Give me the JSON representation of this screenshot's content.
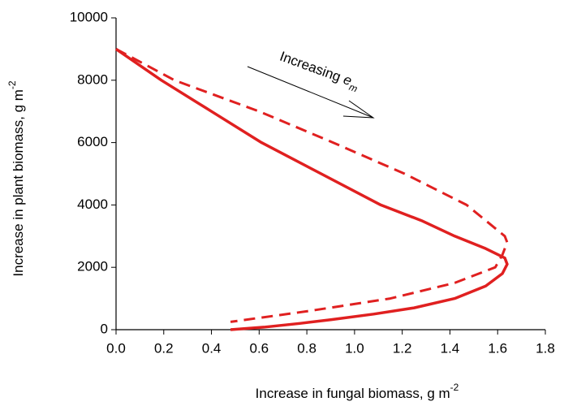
{
  "chart_data": {
    "type": "line",
    "xlabel": "Increase in fungal biomass, g m",
    "xlabel_sup": "-2",
    "ylabel": "Increase in plant biomass, g m",
    "ylabel_sup": "-2",
    "annotation": "Increasing",
    "annotation_symbol": "e",
    "annotation_sub": "m",
    "xlim": [
      0,
      1.8
    ],
    "xticks": [
      {
        "value": 0,
        "label": "0.0"
      },
      0.2,
      0.4,
      0.6,
      0.8,
      {
        "value": 1,
        "label": "1.0"
      },
      1.2,
      1.4,
      1.6,
      1.8
    ],
    "ylim": [
      0,
      10000
    ],
    "yticks": [
      0,
      2000,
      4000,
      6000,
      8000,
      10000
    ],
    "series": [
      {
        "color": "#e02020",
        "style": "solid",
        "x": [
          0,
          0.19,
          0.4,
          0.61,
          0.86,
          1.11,
          1.28,
          1.42,
          1.55,
          1.63,
          1.64,
          1.62,
          1.55,
          1.42,
          1.25,
          1.08,
          0.9,
          0.77,
          0.62,
          0.48
        ],
        "values": [
          9000,
          8000,
          7000,
          6000,
          5000,
          4000,
          3500,
          3000,
          2600,
          2300,
          2100,
          1800,
          1400,
          1000,
          700,
          500,
          320,
          200,
          80,
          0
        ]
      },
      {
        "color": "#e02020",
        "style": "dashed",
        "x": [
          0,
          0.245,
          0.6,
          0.91,
          1.21,
          1.47,
          1.63,
          1.64,
          1.62,
          1.59,
          1.42,
          1.15,
          0.81,
          0.48
        ],
        "values": [
          9000,
          8000,
          7000,
          6000,
          5000,
          4000,
          3000,
          2800,
          2400,
          2000,
          1500,
          1000,
          600,
          250
        ]
      }
    ]
  }
}
